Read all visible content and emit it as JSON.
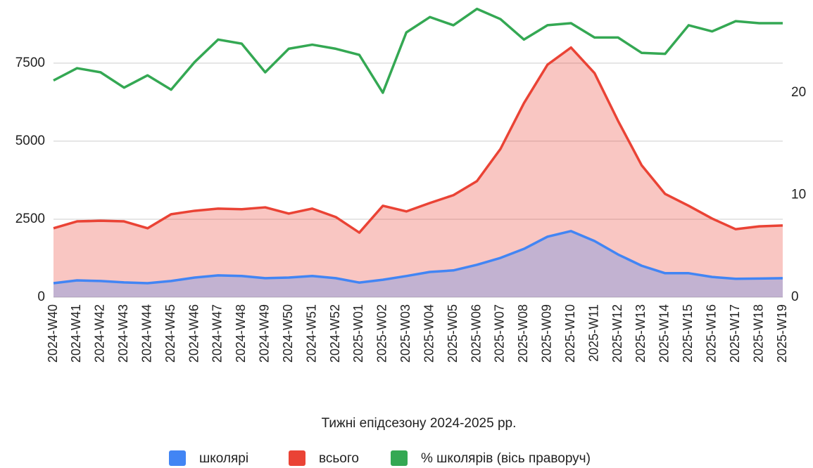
{
  "chart_data": {
    "type": "area",
    "xlabel": "Тижні  епідсезону 2024-2025 рр.",
    "categories": [
      "2024-W40",
      "2024-W41",
      "2024-W42",
      "2024-W43",
      "2024-W44",
      "2024-W45",
      "2024-W46",
      "2024-W47",
      "2024-W48",
      "2024-W49",
      "2024-W50",
      "2024-W51",
      "2024-W52",
      "2025-W01",
      "2025-W02",
      "2025-W03",
      "2025-W04",
      "2025-W05",
      "2025-W06",
      "2025-W07",
      "2025-W08",
      "2025-W09",
      "2025-W10",
      "2025-W11",
      "2025-W12",
      "2025-W13",
      "2025-W14",
      "2025-W15",
      "2025-W16",
      "2025-W17",
      "2025-W18",
      "2025-W19"
    ],
    "series": [
      {
        "name": "школярі",
        "color": "#4285f4",
        "fill": true,
        "values": [
          450,
          540,
          520,
          475,
          450,
          520,
          630,
          700,
          680,
          610,
          630,
          680,
          610,
          470,
          560,
          680,
          810,
          860,
          1040,
          1260,
          1550,
          1940,
          2120,
          1800,
          1370,
          1010,
          770,
          770,
          650,
          590,
          600,
          610
        ]
      },
      {
        "name": "всього",
        "color": "#ea4335",
        "fill": true,
        "values": [
          2210,
          2430,
          2450,
          2430,
          2210,
          2660,
          2770,
          2840,
          2820,
          2880,
          2680,
          2840,
          2570,
          2070,
          2930,
          2750,
          3020,
          3270,
          3720,
          4750,
          6220,
          7450,
          8000,
          7180,
          5650,
          4230,
          3310,
          2930,
          2520,
          2180,
          2270,
          2300
        ]
      },
      {
        "name": "% школярів (вісь праворуч)",
        "color": "#34a853",
        "fill": false,
        "axis": "y2",
        "values": [
          21.2,
          22.4,
          22.0,
          20.5,
          21.7,
          20.3,
          23.0,
          25.2,
          24.8,
          22.0,
          24.3,
          24.7,
          24.3,
          23.7,
          20.0,
          25.9,
          27.4,
          26.6,
          28.2,
          27.2,
          25.2,
          26.6,
          26.8,
          25.4,
          25.4,
          23.9,
          23.8,
          26.6,
          26.0,
          27.0,
          26.8,
          26.8
        ]
      }
    ],
    "ylim": [
      0,
      9500
    ],
    "yticks": [
      0,
      2500,
      5000,
      7500
    ],
    "y2lim": [
      0,
      29
    ],
    "y2ticks": [
      0,
      10,
      20
    ],
    "grid": true,
    "legend": "bottom"
  }
}
